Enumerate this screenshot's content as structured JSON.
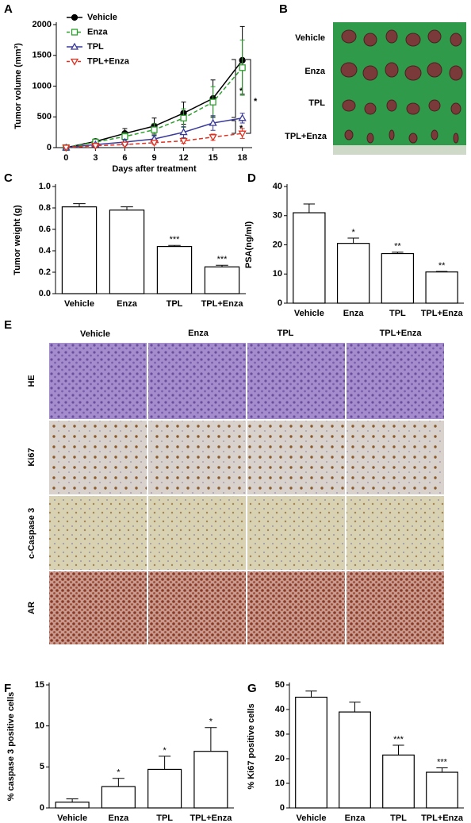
{
  "chart_data": [
    {
      "type": "line",
      "panel_label": "A",
      "x": [
        0,
        3,
        6,
        9,
        12,
        15,
        18
      ],
      "xlim": [
        -1,
        19
      ],
      "xticks": [
        0,
        3,
        6,
        9,
        12,
        15,
        18
      ],
      "ylim": [
        0,
        2000
      ],
      "yticks": [
        0,
        500,
        1000,
        1500,
        2000
      ],
      "xlabel": "Days after treatment",
      "ylabel": "Tumor volume (mm³)",
      "legend": "upper left",
      "annotations": [
        "*",
        "*",
        "*"
      ],
      "series": [
        {
          "name": "Vehicle",
          "color": "#000000",
          "marker": "circle",
          "dashed": false,
          "values": [
            0,
            100,
            230,
            350,
            560,
            800,
            1420
          ],
          "errors": [
            20,
            40,
            80,
            130,
            180,
            300,
            550
          ]
        },
        {
          "name": "Enza",
          "color": "#2ca02c",
          "marker": "square",
          "dashed": true,
          "values": [
            0,
            90,
            180,
            290,
            480,
            740,
            1300
          ],
          "errors": [
            15,
            30,
            60,
            100,
            150,
            250,
            450
          ]
        },
        {
          "name": "TPL",
          "color": "#3a3a9a",
          "marker": "triangle",
          "dashed": false,
          "values": [
            0,
            50,
            90,
            140,
            250,
            400,
            480
          ],
          "errors": [
            10,
            20,
            40,
            60,
            90,
            120,
            80
          ]
        },
        {
          "name": "TPL+Enza",
          "color": "#e03020",
          "marker": "triangle-down",
          "dashed": true,
          "values": [
            0,
            30,
            50,
            80,
            110,
            170,
            230
          ],
          "errors": [
            5,
            10,
            20,
            30,
            40,
            50,
            80
          ]
        }
      ]
    },
    {
      "type": "bar",
      "panel_label": "C",
      "categories": [
        "Vehicle",
        "Enza",
        "TPL",
        "TPL+Enza"
      ],
      "values": [
        0.81,
        0.78,
        0.44,
        0.25
      ],
      "errors": [
        0.03,
        0.03,
        0.01,
        0.015
      ],
      "significance": [
        null,
        null,
        "***",
        "***"
      ],
      "ylabel": "Tumor weight (g)",
      "ylim": [
        0,
        1.0
      ],
      "yticks": [
        {
          "value": 0,
          "label": "0.0"
        },
        0.2,
        0.4,
        0.6,
        0.8,
        {
          "value": 1,
          "label": "1.0"
        }
      ],
      "color": "#ffffff"
    },
    {
      "type": "bar",
      "panel_label": "D",
      "categories": [
        "Vehicle",
        "Enza",
        "TPL",
        "TPL+Enza"
      ],
      "values": [
        31,
        20.5,
        17,
        10.7
      ],
      "errors": [
        3,
        1.8,
        0.5,
        0.2
      ],
      "significance": [
        null,
        "*",
        "**",
        "**"
      ],
      "ylabel": "PSA(ng/ml)",
      "ylim": [
        0,
        40
      ],
      "yticks": [
        0,
        10,
        20,
        30,
        40
      ],
      "color": "#ffffff"
    },
    {
      "type": "bar",
      "panel_label": "F",
      "categories": [
        "Vehicle",
        "Enza",
        "TPL",
        "TPL+Enza"
      ],
      "values": [
        0.7,
        2.6,
        4.7,
        6.9
      ],
      "errors": [
        0.4,
        1.0,
        1.6,
        2.9
      ],
      "significance": [
        null,
        "*",
        "*",
        "*"
      ],
      "ylabel": "% caspase 3 positive cells",
      "ylim": [
        0,
        15
      ],
      "yticks": [
        0,
        5,
        10,
        15
      ],
      "color": "#ffffff"
    },
    {
      "type": "bar",
      "panel_label": "G",
      "categories": [
        "Vehicle",
        "Enza",
        "TPL",
        "TPL+Enza"
      ],
      "values": [
        45,
        39,
        21.5,
        14.5
      ],
      "errors": [
        2.5,
        4,
        4,
        1.8
      ],
      "significance": [
        null,
        null,
        "***",
        "***"
      ],
      "ylabel": "% Ki67 positive cells",
      "ylim": [
        0,
        50
      ],
      "yticks": [
        0,
        10,
        20,
        30,
        40,
        50
      ],
      "color": "#ffffff"
    }
  ],
  "photo": {
    "panel_label": "B",
    "rows": [
      "Vehicle",
      "Enza",
      "TPL",
      "TPL+Enza"
    ]
  },
  "histology": {
    "panel_label": "E",
    "columns": [
      "Vehicle",
      "Enza",
      "TPL",
      "TPL+Enza"
    ],
    "rows": [
      "HE",
      "Ki67",
      "c-Caspase 3",
      "AR"
    ]
  }
}
